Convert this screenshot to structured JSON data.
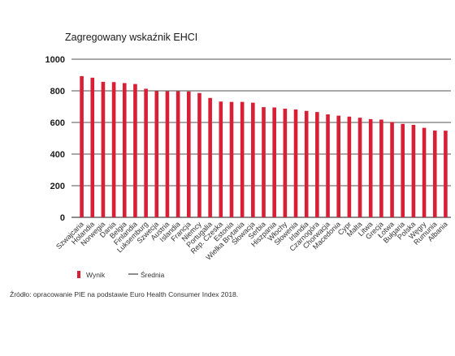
{
  "chart_data": {
    "type": "bar",
    "title": "Zagregowany wskaźnik EHCI",
    "xlabel": "",
    "ylabel": "",
    "ylim": [
      0,
      1000
    ],
    "yticks": [
      0,
      200,
      400,
      600,
      800,
      1000
    ],
    "grid": true,
    "categories": [
      "Szwajcaria",
      "Holandia",
      "Norwegia",
      "Dania",
      "Belgia",
      "Finlandia",
      "Luksemburg",
      "Szwecja",
      "Austria",
      "Islandia",
      "Francja",
      "Niemcy",
      "Portugalia",
      "Rep. Czeska",
      "Estonia",
      "Wielka Brytania",
      "Słowacja",
      "Serbia",
      "Hiszpania",
      "Włochy",
      "Słowenia",
      "Irlandia",
      "Czarnogóra",
      "Chorwacja",
      "Macedonia",
      "Cypr",
      "Malta",
      "Litwa",
      "Grecja",
      "Łotwa",
      "Bułgaria",
      "Polska",
      "Węgry",
      "Rumunia",
      "Albania"
    ],
    "series": [
      {
        "name": "Wynik",
        "color": "#d81f36",
        "values": [
          893,
          883,
          857,
          855,
          849,
          843,
          813,
          798,
          797,
          797,
          796,
          786,
          755,
          732,
          730,
          730,
          725,
          697,
          695,
          687,
          682,
          673,
          666,
          651,
          643,
          637,
          630,
          621,
          618,
          603,
          591,
          585,
          566,
          549,
          548
        ]
      }
    ],
    "legend": {
      "position": "bottom-left",
      "items": [
        "Wynik",
        "Średnia"
      ]
    }
  },
  "source_note": "Źródło: opracowanie PIE na podstawie Euro Health Consumer Index 2018."
}
